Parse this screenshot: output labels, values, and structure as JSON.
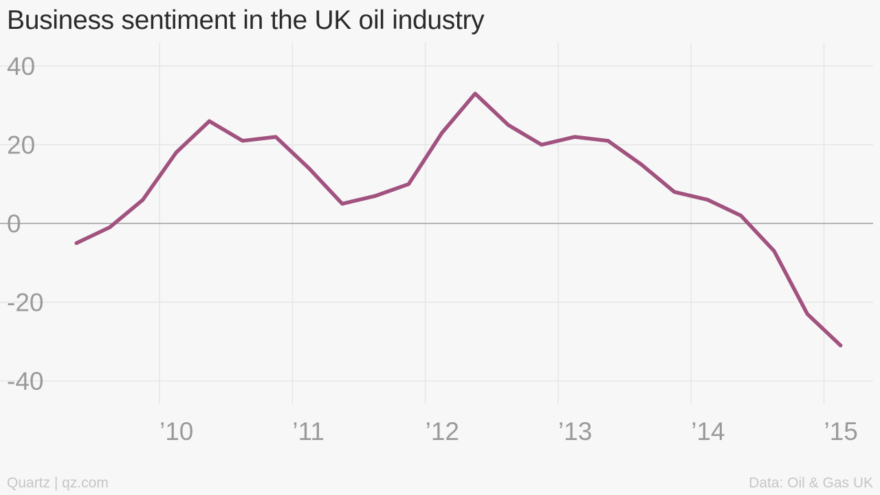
{
  "title": "Business sentiment in the UK oil industry",
  "credit": "Quartz | qz.com",
  "source": "Data: Oil & Gas UK",
  "colors": {
    "line": "#a1527f",
    "grid": "#e6e6e6",
    "zero_line": "#9e9e9e",
    "tick_text": "#9a9a9a",
    "background": "#f7f7f7"
  },
  "chart_data": {
    "type": "line",
    "title": "Business sentiment in the UK oil industry",
    "xlabel": "",
    "ylabel": "",
    "ylim": [
      -45,
      45
    ],
    "xlim": [
      2009.06,
      2015.34
    ],
    "yticks": [
      40,
      20,
      0,
      -20,
      -40
    ],
    "xticks": [
      {
        "value": 2010,
        "label": "’10"
      },
      {
        "value": 2011,
        "label": "’11"
      },
      {
        "value": 2012,
        "label": "’12"
      },
      {
        "value": 2013,
        "label": "’13"
      },
      {
        "value": 2014,
        "label": "’14"
      },
      {
        "value": 2015,
        "label": "’15"
      }
    ],
    "grid": true,
    "series": [
      {
        "x": [
          2009.375,
          2009.625,
          2009.875,
          2010.125,
          2010.375,
          2010.625,
          2010.875,
          2011.125,
          2011.375,
          2011.625,
          2011.875,
          2012.125,
          2012.375,
          2012.625,
          2012.875,
          2013.125,
          2013.375,
          2013.625,
          2013.875,
          2014.125,
          2014.375,
          2014.625,
          2014.875,
          2015.125
        ],
        "values": [
          -5,
          -1,
          6,
          18,
          26,
          21,
          22,
          14,
          5,
          7,
          10,
          23,
          33,
          25,
          20,
          22,
          21,
          15,
          8,
          6,
          2,
          -7,
          -23,
          -31
        ]
      }
    ]
  }
}
